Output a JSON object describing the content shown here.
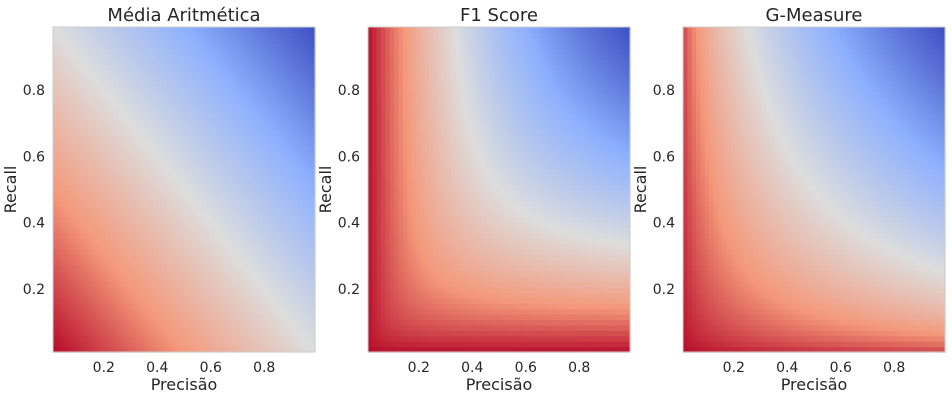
{
  "chart_data": [
    {
      "type": "heatmap",
      "title": "Média Aritmética",
      "metric": "arithmetic_mean",
      "xlabel": "Precisão",
      "ylabel": "Recall",
      "xlim": [
        0.01,
        0.99
      ],
      "ylim": [
        0.01,
        0.99
      ],
      "x_ticks": [
        0.2,
        0.4,
        0.6,
        0.8
      ],
      "y_ticks": [
        0.2,
        0.4,
        0.6,
        0.8
      ],
      "x_tick_labels": [
        "0.2",
        "0.4",
        "0.6",
        "0.8"
      ],
      "y_tick_labels": [
        "0.2",
        "0.4",
        "0.6",
        "0.8"
      ],
      "grid": false,
      "colormap": "coolwarm",
      "colormap_reversed": true,
      "value_range": [
        0,
        1
      ]
    },
    {
      "type": "heatmap",
      "title": "F1 Score",
      "metric": "f1_harmonic_mean",
      "xlabel": "Precisão",
      "ylabel": "Recall",
      "xlim": [
        0.01,
        0.99
      ],
      "ylim": [
        0.01,
        0.99
      ],
      "x_ticks": [
        0.2,
        0.4,
        0.6,
        0.8
      ],
      "y_ticks": [
        0.2,
        0.4,
        0.6,
        0.8
      ],
      "x_tick_labels": [
        "0.2",
        "0.4",
        "0.6",
        "0.8"
      ],
      "y_tick_labels": [
        "0.2",
        "0.4",
        "0.6",
        "0.8"
      ],
      "grid": false,
      "colormap": "coolwarm",
      "colormap_reversed": true,
      "value_range": [
        0,
        1
      ]
    },
    {
      "type": "heatmap",
      "title": "G-Measure",
      "metric": "geometric_mean",
      "xlabel": "Precisão",
      "ylabel": "Recall",
      "xlim": [
        0.01,
        0.99
      ],
      "ylim": [
        0.01,
        0.99
      ],
      "x_ticks": [
        0.2,
        0.4,
        0.6,
        0.8
      ],
      "y_ticks": [
        0.2,
        0.4,
        0.6,
        0.8
      ],
      "x_tick_labels": [
        "0.2",
        "0.4",
        "0.6",
        "0.8"
      ],
      "y_tick_labels": [
        "0.2",
        "0.4",
        "0.6",
        "0.8"
      ],
      "grid": false,
      "colormap": "coolwarm",
      "colormap_reversed": true,
      "value_range": [
        0,
        1
      ]
    }
  ]
}
